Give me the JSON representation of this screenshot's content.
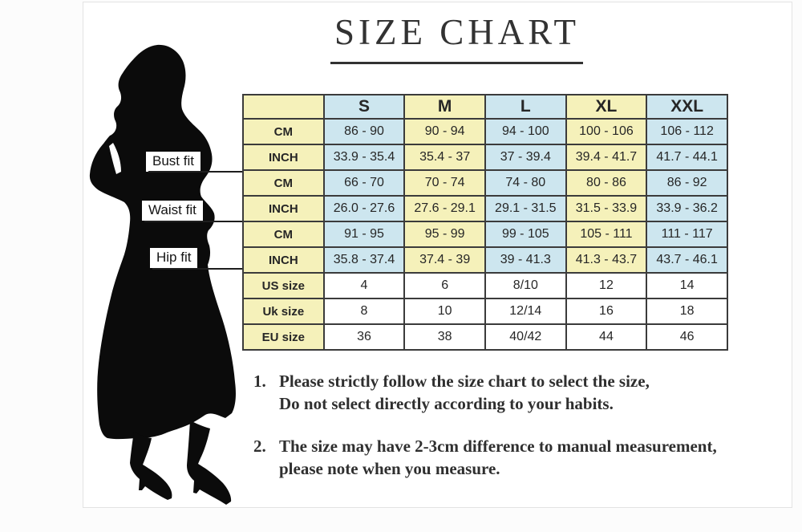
{
  "title": "SIZE CHART",
  "figure": {
    "silhouette": "woman-silhouette",
    "fit_labels": [
      {
        "text": "Bust fit"
      },
      {
        "text": "Waist fit"
      },
      {
        "text": "Hip fit"
      }
    ]
  },
  "table": {
    "header": [
      "",
      "S",
      "M",
      "L",
      "XL",
      "XXL"
    ],
    "rows": [
      {
        "label": "CM",
        "type": "measure",
        "fit": "Bust fit",
        "values": [
          "86 - 90",
          "90 - 94",
          "94 - 100",
          "100 - 106",
          "106 - 112"
        ]
      },
      {
        "label": "INCH",
        "type": "measure",
        "fit": "Bust fit",
        "values": [
          "33.9 - 35.4",
          "35.4 - 37",
          "37 - 39.4",
          "39.4 - 41.7",
          "41.7 - 44.1"
        ]
      },
      {
        "label": "CM",
        "type": "measure",
        "fit": "Waist fit",
        "values": [
          "66 - 70",
          "70 - 74",
          "74 - 80",
          "80 - 86",
          "86 - 92"
        ]
      },
      {
        "label": "INCH",
        "type": "measure",
        "fit": "Waist fit",
        "values": [
          "26.0 - 27.6",
          "27.6 - 29.1",
          "29.1 - 31.5",
          "31.5 - 33.9",
          "33.9 - 36.2"
        ]
      },
      {
        "label": "CM",
        "type": "measure",
        "fit": "Hip fit",
        "values": [
          "91 - 95",
          "95 - 99",
          "99 - 105",
          "105 - 111",
          "111 - 117"
        ]
      },
      {
        "label": "INCH",
        "type": "measure",
        "fit": "Hip fit",
        "values": [
          "35.8 - 37.4",
          "37.4 - 39",
          "39 - 41.3",
          "41.3 - 43.7",
          "43.7 - 46.1"
        ]
      },
      {
        "label": "US size",
        "type": "size",
        "values": [
          "4",
          "6",
          "8/10",
          "12",
          "14"
        ]
      },
      {
        "label": "Uk size",
        "type": "size",
        "values": [
          "8",
          "10",
          "12/14",
          "16",
          "18"
        ]
      },
      {
        "label": "EU size",
        "type": "size",
        "values": [
          "36",
          "38",
          "40/42",
          "44",
          "46"
        ]
      }
    ]
  },
  "notes": [
    {
      "num": "1.",
      "lines": [
        "Please strictly follow the size chart to select the size,",
        "Do not select directly according to your habits."
      ]
    },
    {
      "num": "2.",
      "lines": [
        "The size may have 2-3cm difference  to manual measurement,",
        "please note when you measure."
      ]
    }
  ],
  "colors": {
    "cell_yellow": "#f5f1ba",
    "cell_blue": "#cde6ef",
    "cell_white": "#ffffff",
    "table_border": "#3b3b3b",
    "text": "#262626",
    "title": "#323232",
    "silhouette": "#0b0b0b"
  }
}
